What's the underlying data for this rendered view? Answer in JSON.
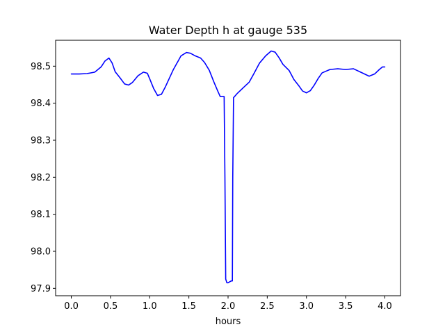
{
  "chart_data": {
    "type": "line",
    "title": "Water Depth h at gauge 535",
    "xlabel": "hours",
    "ylabel": "",
    "xlim": [
      -0.2,
      4.2
    ],
    "ylim": [
      97.88,
      98.57
    ],
    "xticks": [
      0.0,
      0.5,
      1.0,
      1.5,
      2.0,
      2.5,
      3.0,
      3.5,
      4.0
    ],
    "xtick_labels": [
      "0.0",
      "0.5",
      "1.0",
      "1.5",
      "2.0",
      "2.5",
      "3.0",
      "3.5",
      "4.0"
    ],
    "yticks": [
      97.9,
      98.0,
      98.1,
      98.2,
      98.3,
      98.4,
      98.5
    ],
    "ytick_labels": [
      "97.9",
      "98.0",
      "98.1",
      "98.2",
      "98.3",
      "98.4",
      "98.5"
    ],
    "grid": false,
    "series": [
      {
        "color": "#0000ff",
        "x": [
          0.0,
          0.1,
          0.2,
          0.3,
          0.38,
          0.43,
          0.48,
          0.52,
          0.56,
          0.62,
          0.68,
          0.73,
          0.78,
          0.85,
          0.92,
          0.97,
          1.0,
          1.05,
          1.1,
          1.15,
          1.2,
          1.3,
          1.4,
          1.47,
          1.52,
          1.58,
          1.65,
          1.7,
          1.76,
          1.82,
          1.87,
          1.9,
          1.95,
          1.96,
          1.97,
          1.985,
          2.0,
          2.04,
          2.055,
          2.06,
          2.07,
          2.12,
          2.2,
          2.27,
          2.33,
          2.4,
          2.48,
          2.55,
          2.6,
          2.65,
          2.7,
          2.78,
          2.84,
          2.9,
          2.95,
          3.0,
          3.05,
          3.1,
          3.15,
          3.2,
          3.3,
          3.4,
          3.5,
          3.6,
          3.7,
          3.8,
          3.87,
          3.93,
          3.97,
          4.0
        ],
        "values": [
          98.479,
          98.479,
          98.48,
          98.484,
          98.498,
          98.514,
          98.522,
          98.509,
          98.485,
          98.469,
          98.452,
          98.449,
          98.456,
          98.474,
          98.484,
          98.481,
          98.466,
          98.44,
          98.421,
          98.424,
          98.444,
          98.49,
          98.528,
          98.537,
          98.535,
          98.528,
          98.522,
          98.51,
          98.489,
          98.457,
          98.432,
          98.418,
          98.418,
          98.2,
          97.925,
          97.915,
          97.915,
          97.92,
          97.92,
          98.2,
          98.415,
          98.427,
          98.443,
          98.457,
          98.48,
          98.508,
          98.528,
          98.541,
          98.538,
          98.523,
          98.505,
          98.488,
          98.464,
          98.448,
          98.433,
          98.428,
          98.434,
          98.449,
          98.467,
          98.482,
          98.491,
          98.493,
          98.491,
          98.493,
          98.483,
          98.473,
          98.479,
          98.491,
          98.498,
          98.498
        ]
      }
    ]
  }
}
